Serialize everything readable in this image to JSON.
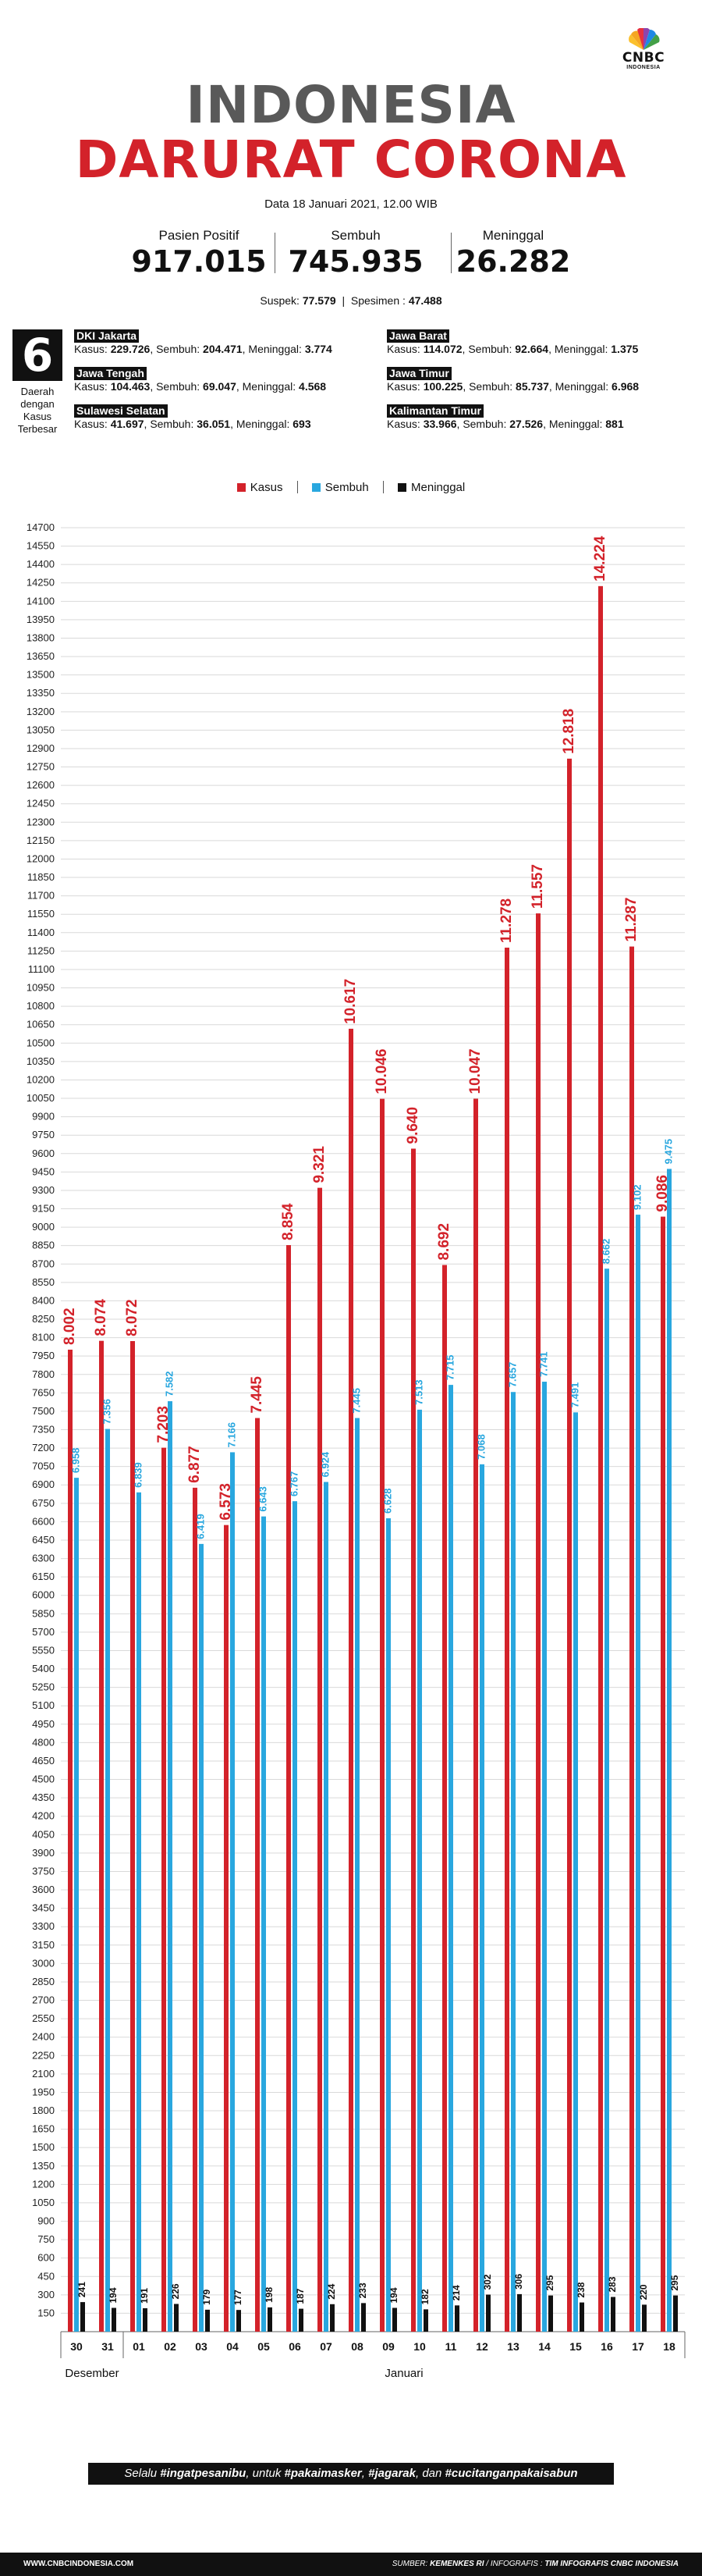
{
  "logo": {
    "brand": "CNBC",
    "sub": "INDONESIA"
  },
  "header": {
    "title_line1": "INDONESIA",
    "title_line2": "DARURAT CORONA",
    "date": "Data 18 Januari 2021, 12.00 WIB"
  },
  "stats": [
    {
      "label": "Pasien Positif",
      "value": "917.015"
    },
    {
      "label": "Sembuh",
      "value": "745.935"
    },
    {
      "label": "Meninggal",
      "value": "26.282"
    }
  ],
  "suspek": {
    "label1": "Suspek: ",
    "value1": "77.579",
    "label2": "Spesimen : ",
    "value2": "47.488"
  },
  "regions": {
    "count": "6",
    "caption": [
      "Daerah",
      "dengan",
      "Kasus",
      "Terbesar"
    ],
    "items": [
      {
        "name": "DKI Jakarta",
        "kasus": "229.726",
        "sembuh": "204.471",
        "meninggal": "3.774"
      },
      {
        "name": "Jawa Tengah",
        "kasus": "104.463",
        "sembuh": "69.047",
        "meninggal": "4.568"
      },
      {
        "name": "Sulawesi Selatan",
        "kasus": "41.697",
        "sembuh": "36.051",
        "meninggal": "693"
      },
      {
        "name": "Jawa Barat",
        "kasus": "114.072",
        "sembuh": "92.664",
        "meninggal": "1.375"
      },
      {
        "name": "Jawa Timur",
        "kasus": "100.225",
        "sembuh": "85.737",
        "meninggal": "6.968"
      },
      {
        "name": "Kalimantan Timur",
        "kasus": "33.966",
        "sembuh": "27.526",
        "meninggal": "881"
      }
    ],
    "labels": {
      "kasus": "Kasus: ",
      "sembuh": "Sembuh: ",
      "meninggal": "Meninggal: "
    }
  },
  "colors": {
    "kasus": "#d3222a",
    "sembuh": "#29a7df",
    "meninggal": "#111111",
    "title_grey": "#595959",
    "grid": "#d9d9d9"
  },
  "chart_data": {
    "type": "bar",
    "series": [
      {
        "name": "Kasus",
        "values": [
          8002,
          8074,
          8072,
          7203,
          6877,
          6573,
          7445,
          8854,
          9321,
          10617,
          10046,
          9640,
          8692,
          10047,
          11278,
          11557,
          12818,
          14224,
          11287,
          9086
        ]
      },
      {
        "name": "Sembuh",
        "values": [
          6958,
          7356,
          6839,
          7582,
          6419,
          7166,
          6643,
          6767,
          6924,
          7445,
          6628,
          7513,
          7715,
          7068,
          7657,
          7741,
          7491,
          8662,
          9102,
          9475
        ]
      },
      {
        "name": "Meninggal",
        "values": [
          241,
          194,
          191,
          226,
          179,
          177,
          198,
          187,
          224,
          233,
          194,
          182,
          214,
          302,
          306,
          295,
          238,
          283,
          220,
          295
        ]
      }
    ],
    "categories": [
      "30",
      "31",
      "01",
      "02",
      "03",
      "04",
      "05",
      "06",
      "07",
      "08",
      "09",
      "10",
      "11",
      "12",
      "13",
      "14",
      "15",
      "16",
      "17",
      "18"
    ],
    "labels": {
      "kasus": [
        "8.002",
        "8.074",
        "8.072",
        "7.203",
        "6.877",
        "6.573",
        "7.445",
        "8.854",
        "9.321",
        "10.617",
        "10.046",
        "9.640",
        "8.692",
        "10.047",
        "11.278",
        "11.557",
        "12.818",
        "14.224",
        "11.287",
        "9.086"
      ],
      "sembuh": [
        "6.958",
        "7.356",
        "6.839",
        "7.582",
        "6.419",
        "7.166",
        "6.643",
        "6.767",
        "6.924",
        "7.445",
        "6.628",
        "7.513",
        "7.715",
        "7.068",
        "7.657",
        "7.741",
        "7.491",
        "8.662",
        "9.102",
        "9.475"
      ],
      "meninggal": [
        "241",
        "194",
        "191",
        "226",
        "179",
        "177",
        "198",
        "187",
        "224",
        "233",
        "194",
        "182",
        "214",
        "302",
        "306",
        "295",
        "238",
        "283",
        "220",
        "295"
      ]
    },
    "month_labels": [
      "Desember",
      "Januari"
    ],
    "ylim": [
      0,
      14700
    ],
    "ytick_step": 150,
    "grid": true,
    "legend_position": "top-center"
  },
  "slogan": {
    "p1": "Selalu ",
    "h1": "#ingatpesanibu",
    "p2": ", untuk ",
    "h2": "#pakaimasker",
    "p3": ", ",
    "h3": "#jagarak",
    "p4": ", dan ",
    "h4": "#cucitanganpakaisabun"
  },
  "footer": {
    "website": "WWW.CNBCINDONESIA.COM",
    "source_label": "SUMBER: ",
    "source": "KEMENKES RI",
    "infographic_label": " / INFOGRAFIS : ",
    "infographic": "TIM INFOGRAFIS CNBC INDONESIA"
  }
}
